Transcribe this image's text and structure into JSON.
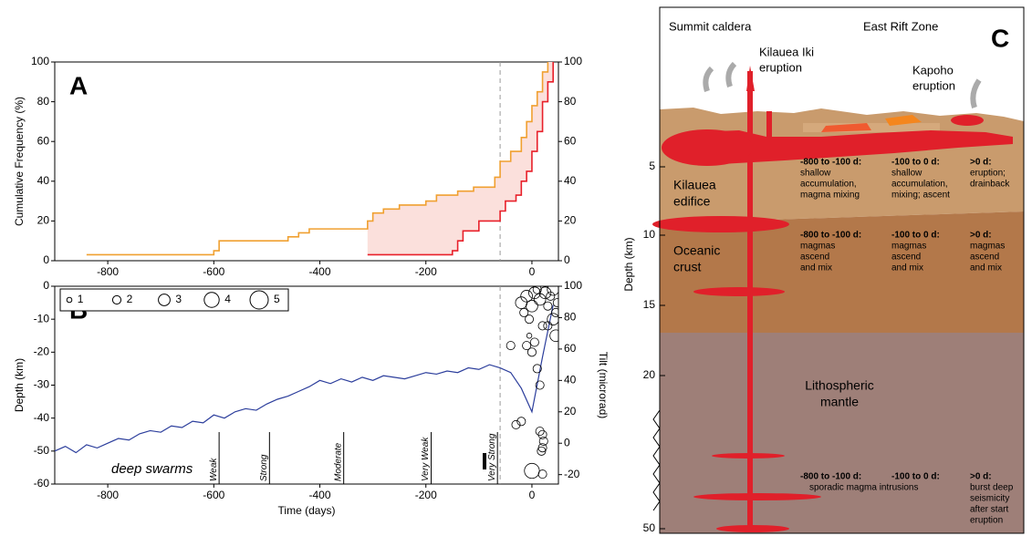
{
  "chart_data": [
    {
      "type": "step",
      "panel_label": "A",
      "ylabel": "Cumulative Frequency (%)",
      "xlim": [
        -900,
        50
      ],
      "xticks": [
        -800,
        -600,
        -400,
        -200,
        0
      ],
      "ylim": [
        0,
        100
      ],
      "yticks": [
        0,
        20,
        40,
        60,
        80,
        100
      ],
      "y2lim": [
        0,
        100
      ],
      "y2ticks": [
        0,
        20,
        40,
        60,
        80,
        100
      ],
      "reference_line_x": -60,
      "fill_between": "#fbe0dc",
      "series": [
        {
          "color": "#f0a030",
          "x": [
            -840,
            -600,
            -590,
            -460,
            -440,
            -420,
            -310,
            -300,
            -280,
            -250,
            -200,
            -180,
            -140,
            -110,
            -70,
            -60,
            -40,
            -20,
            -10,
            0,
            10,
            20,
            30
          ],
          "values": [
            3,
            5,
            10,
            12,
            14,
            16,
            20,
            24,
            26,
            28,
            30,
            33,
            35,
            37,
            42,
            50,
            55,
            62,
            70,
            78,
            85,
            95,
            100
          ]
        },
        {
          "color": "#e8202a",
          "x": [
            -310,
            -150,
            -140,
            -130,
            -100,
            -60,
            -50,
            -30,
            -20,
            -10,
            0,
            10,
            20,
            30,
            40
          ],
          "values": [
            3,
            5,
            10,
            15,
            20,
            25,
            30,
            33,
            40,
            45,
            55,
            65,
            80,
            90,
            100
          ]
        }
      ]
    },
    {
      "type": "line_scatter",
      "panel_label": "B",
      "xlabel": "Time (days)",
      "ylabel": "Depth (km)",
      "y2label": "Tilt (microrad)",
      "xlim": [
        -900,
        50
      ],
      "xticks": [
        -800,
        -600,
        -400,
        -200,
        0
      ],
      "ylim": [
        -60,
        0
      ],
      "yticks": [
        0,
        -10,
        -20,
        -30,
        -40,
        -50,
        -60
      ],
      "y2lim": [
        -26,
        100
      ],
      "y2ticks": [
        -20,
        0,
        20,
        40,
        60,
        80,
        100
      ],
      "reference_line_x": -60,
      "tilt": {
        "color": "#2c3e9c",
        "axis": "y2",
        "x": [
          -900,
          -880,
          -860,
          -840,
          -820,
          -800,
          -780,
          -760,
          -740,
          -720,
          -700,
          -680,
          -660,
          -640,
          -620,
          -600,
          -580,
          -560,
          -540,
          -520,
          -500,
          -480,
          -460,
          -440,
          -420,
          -400,
          -380,
          -360,
          -340,
          -320,
          -300,
          -280,
          -260,
          -240,
          -220,
          -200,
          -180,
          -160,
          -140,
          -120,
          -100,
          -80,
          -60,
          -40,
          -20,
          0,
          20,
          40
        ],
        "values": [
          -5,
          -2,
          -6,
          -1,
          -3,
          0,
          3,
          2,
          6,
          8,
          7,
          11,
          10,
          14,
          13,
          18,
          16,
          20,
          22,
          21,
          25,
          28,
          30,
          33,
          36,
          40,
          38,
          41,
          39,
          42,
          40,
          43,
          42,
          41,
          43,
          45,
          44,
          46,
          45,
          48,
          47,
          50,
          48,
          45,
          35,
          20,
          55,
          88
        ]
      },
      "earthquakes": {
        "x": [
          -20,
          -15,
          -10,
          -5,
          0,
          5,
          10,
          15,
          20,
          25,
          30,
          35,
          40,
          45,
          48,
          -10,
          -5,
          0,
          5,
          10,
          15,
          20,
          22,
          20,
          18,
          15,
          0,
          -20,
          -30,
          -40,
          30,
          40,
          45,
          20
        ],
        "depth": [
          -5,
          -8,
          -3,
          -10,
          -6,
          -2,
          -1,
          -4,
          -12,
          -2,
          -6,
          -3,
          -1,
          -8,
          -5,
          -18,
          -15,
          -20,
          -17,
          -25,
          -30,
          -45,
          -47,
          -49,
          -50,
          -44,
          -56,
          -41,
          -42,
          -18,
          -12,
          -10,
          -15,
          -57
        ],
        "size": [
          3,
          2,
          3,
          2,
          3,
          3,
          2,
          3,
          2,
          3,
          2,
          2,
          3,
          2,
          2,
          2,
          1,
          2,
          2,
          2,
          2,
          2,
          2,
          2,
          2,
          2,
          4,
          2,
          2,
          2,
          2,
          3,
          3,
          2
        ]
      },
      "size_legend": [
        1,
        2,
        3,
        4,
        5
      ],
      "swarms_label": "deep swarms",
      "swarms": [
        {
          "x": -590,
          "label": "Weak"
        },
        {
          "x": -495,
          "label": "Strong"
        },
        {
          "x": -355,
          "label": "Moderate"
        },
        {
          "x": -190,
          "label": "Very Weak"
        },
        {
          "x": -65,
          "label": "Very Strong"
        }
      ]
    }
  ],
  "diagram": {
    "panel_label": "C",
    "top_labels": [
      "Summit caldera",
      "East Rift Zone"
    ],
    "eruptions": [
      [
        "Kilauea Iki",
        "eruption"
      ],
      [
        "Kapoho",
        "eruption"
      ]
    ],
    "depth_axis": {
      "label": "Depth (km)",
      "ticks": [
        "5",
        "10",
        "15",
        "20",
        "50"
      ]
    },
    "layers": [
      [
        "Kilauea",
        "edifice"
      ],
      [
        "Oceanic",
        "crust"
      ],
      [
        "Lithospheric",
        "mantle"
      ]
    ],
    "notes": [
      {
        "cols": [
          {
            "range": "-800 to -100 d:",
            "lines": [
              "shallow",
              "accumulation,",
              "magma mixing"
            ]
          },
          {
            "range": "-100 to 0 d:",
            "lines": [
              "shallow",
              "accumulation,",
              "mixing; ascent"
            ]
          },
          {
            "range": ">0 d:",
            "lines": [
              "eruption;",
              "drainback"
            ]
          }
        ]
      },
      {
        "cols": [
          {
            "range": "-800 to -100 d:",
            "lines": [
              "magmas",
              "ascend",
              "and mix"
            ]
          },
          {
            "range": "-100 to 0 d:",
            "lines": [
              "magmas",
              "ascend",
              "and mix"
            ]
          },
          {
            "range": ">0 d:",
            "lines": [
              "magmas",
              "ascend",
              "and mix"
            ]
          }
        ]
      },
      {
        "cols": [
          {
            "range": "-800 to -100 d:",
            "lines": [
              "sporadic magma intrusions"
            ]
          },
          {
            "range": "-100 to 0 d:"
          },
          {
            "range": ">0 d:",
            "lines": [
              "burst deep",
              "seismicity",
              "after start",
              "eruption"
            ]
          }
        ]
      }
    ]
  }
}
